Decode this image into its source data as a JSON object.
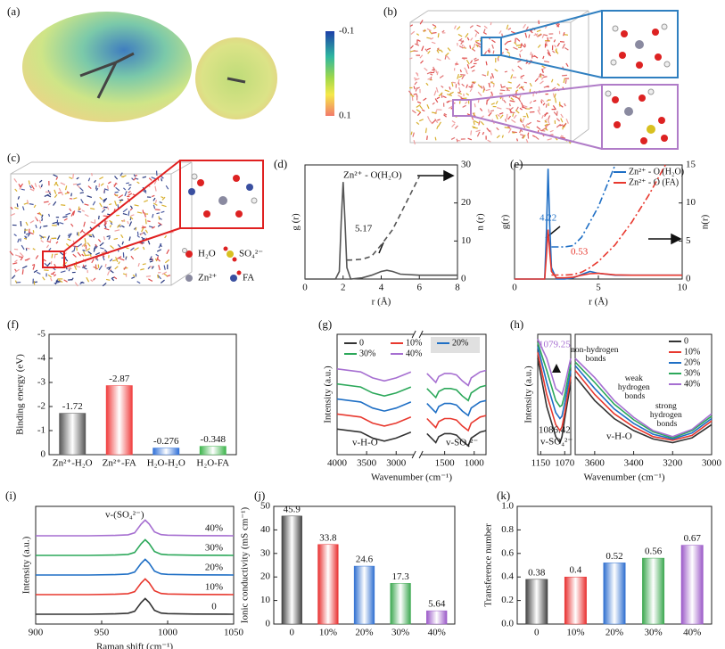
{
  "figures": [
    {
      "label": "(a)",
      "colorbar_ticks": [
        -0.1,
        0.1
      ]
    },
    {
      "label": "(b)"
    },
    {
      "label": "(c)",
      "legend": [
        "H₂O",
        "SO₄²⁻",
        "Zn²⁺",
        "FA"
      ]
    }
  ],
  "chart_data": [
    {
      "type": "line",
      "label": "(d)",
      "xlabel": "r (Å)",
      "ylabel": "g (r)",
      "y2label": "n (r)",
      "xlim": [
        0,
        8
      ],
      "xticks": [
        0,
        2,
        4,
        6,
        8
      ],
      "ylim": [
        0,
        30
      ],
      "y2lim": [
        0,
        30
      ],
      "y2ticks": [
        0,
        10,
        20,
        30
      ],
      "x": [
        0,
        1,
        1.6,
        1.8,
        1.9,
        2.0,
        2.1,
        2.2,
        2.4,
        3.0,
        3.5,
        4.0,
        4.3,
        4.6,
        5.0,
        6.0,
        7.0,
        8.0
      ],
      "series": [
        {
          "color": "#555555",
          "values": [
            0,
            0,
            0,
            2,
            15,
            25.5,
            15,
            3,
            0,
            0.3,
            1,
            2,
            2.3,
            2,
            1.3,
            1,
            1,
            1
          ]
        },
        {
          "color": "#555555",
          "axis": "y2",
          "dash": "dashed",
          "values": [
            null,
            null,
            null,
            null,
            null,
            null,
            null,
            5,
            5,
            5.2,
            6,
            9,
            11,
            13,
            17,
            27,
            null,
            null
          ]
        }
      ],
      "annotations": [
        "Zn²⁺ - O(H₂O)",
        "5.17"
      ]
    },
    {
      "type": "line",
      "label": "(e)",
      "xlabel": "r (Å)",
      "ylabel": "g(r)",
      "y2label": "n(r)",
      "xlim": [
        0,
        10
      ],
      "xticks": [
        0,
        5,
        10
      ],
      "ylim": [
        0,
        30
      ],
      "y2lim": [
        0,
        15
      ],
      "y2ticks": [
        0,
        5,
        10,
        15
      ],
      "legend": "upper right",
      "x": [
        0,
        1.8,
        1.9,
        2.0,
        2.1,
        2.2,
        2.5,
        3,
        3.5,
        4,
        4.5,
        5,
        6,
        7,
        8,
        9,
        10
      ],
      "series": [
        {
          "name": "Zn²⁺ - O (H₂O)",
          "color": "#1f6fc5",
          "values": [
            0,
            0,
            12,
            29,
            14,
            3,
            0,
            0,
            0.3,
            1.2,
            2,
            1.5,
            1,
            1,
            1,
            1,
            1
          ]
        },
        {
          "name": "Zn²⁺ - O (FA)",
          "color": "#e8392f",
          "values": [
            0,
            0,
            6,
            13,
            7,
            2,
            0.3,
            0.3,
            0.5,
            1,
            1.4,
            1.5,
            1.1,
            1,
            1,
            1,
            1
          ]
        },
        {
          "color": "#1f6fc5",
          "axis": "y2",
          "dash": "dashdot",
          "values": [
            null,
            null,
            null,
            null,
            null,
            4.22,
            4.22,
            4.22,
            4.4,
            5.5,
            7.5,
            9.5,
            15,
            null,
            null,
            null,
            null
          ]
        },
        {
          "color": "#e8392f",
          "axis": "y2",
          "dash": "dashdot",
          "values": [
            null,
            null,
            null,
            null,
            null,
            0.53,
            0.53,
            0.53,
            0.6,
            0.9,
            1.5,
            2.3,
            4.5,
            7.5,
            11,
            15,
            null
          ]
        }
      ],
      "annotations": [
        "4.22",
        "0.53"
      ]
    },
    {
      "type": "bar",
      "label": "(f)",
      "ylabel": "Binding energy (eV)",
      "categories": [
        "Zn²⁺-H₂O",
        "Zn²⁺-FA",
        "H₂O-H₂O",
        "H₂O-FA"
      ],
      "values": [
        -1.72,
        -2.87,
        -0.276,
        -0.348
      ],
      "colors": [
        "#555555",
        "#f03c3c",
        "#2e6fd8",
        "#3cb44b"
      ],
      "ylim": [
        0,
        -5
      ],
      "yticks": [
        0,
        -1,
        -2,
        -3,
        -4,
        -5
      ]
    },
    {
      "type": "line",
      "label": "(g)",
      "xlabel": "Wavenumber (cm⁻¹)",
      "ylabel": "Intensity (a.u.)",
      "xlim": [
        4000,
        800
      ],
      "xbreak": [
        2700,
        1900
      ],
      "xticks": [
        4000,
        3500,
        3000,
        1500,
        1000
      ],
      "ylim": [
        0,
        8
      ],
      "legend": "upper",
      "x": [
        4000,
        3600,
        3400,
        3200,
        3000,
        2750,
        2300,
        1800,
        1700,
        1650,
        1600,
        1500,
        1400,
        1300,
        1200,
        1100,
        1050,
        900,
        800
      ],
      "series": [
        {
          "name": "0",
          "color": "#333333",
          "values": [
            1.7,
            1.5,
            1.1,
            0.9,
            1.1,
            1.5,
            null,
            1.4,
            1.0,
            0.8,
            1.2,
            1.4,
            1.4,
            1.3,
            0.9,
            0.6,
            1.1,
            1.5,
            1.6
          ]
        },
        {
          "name": "10%",
          "color": "#e8392f",
          "values": [
            2.7,
            2.5,
            2.1,
            1.9,
            2.1,
            2.5,
            null,
            2.4,
            2.0,
            1.8,
            2.2,
            2.4,
            2.4,
            2.3,
            1.9,
            1.6,
            2.1,
            2.5,
            2.6
          ]
        },
        {
          "name": "20%",
          "color": "#1f6fc5",
          "values": [
            3.7,
            3.5,
            3.1,
            2.9,
            3.1,
            3.5,
            null,
            3.4,
            3.0,
            2.8,
            3.2,
            3.4,
            3.4,
            3.3,
            2.9,
            2.6,
            3.1,
            3.5,
            3.6
          ]
        },
        {
          "name": "30%",
          "color": "#2ca85a",
          "values": [
            4.7,
            4.5,
            4.1,
            3.9,
            4.1,
            4.5,
            null,
            4.4,
            4.0,
            3.8,
            4.2,
            4.4,
            4.4,
            4.3,
            3.9,
            3.6,
            4.1,
            4.5,
            4.6
          ]
        },
        {
          "name": "40%",
          "color": "#a66fd1",
          "values": [
            5.7,
            5.5,
            5.1,
            4.9,
            5.1,
            5.5,
            null,
            5.4,
            5.0,
            4.8,
            5.2,
            5.4,
            5.4,
            5.3,
            4.9,
            4.6,
            5.1,
            5.5,
            5.6
          ]
        }
      ],
      "annotations": [
        "v-H-O",
        "v-SO₄²⁻"
      ]
    },
    {
      "type": "line",
      "label": "(h)",
      "ylabel": "Intensity (a.u.)",
      "xlim": [
        1160,
        1050
      ],
      "xticks": [
        1150,
        1070
      ],
      "ylim": [
        0,
        10
      ],
      "x": [
        1160,
        1130,
        1100,
        1086,
        1079,
        1070,
        1050
      ],
      "series": [
        {
          "color": "#333333",
          "values": [
            8,
            4,
            1.5,
            1,
            1.5,
            3,
            6
          ]
        },
        {
          "color": "#e8392f",
          "values": [
            8.5,
            5,
            2.5,
            2,
            2.3,
            3.5,
            6.5
          ]
        },
        {
          "color": "#1f6fc5",
          "values": [
            9,
            6,
            3.5,
            3,
            3.2,
            4.3,
            7
          ]
        },
        {
          "color": "#2ca85a",
          "values": [
            9.3,
            7,
            4.5,
            4,
            4.1,
            5,
            7.5
          ]
        },
        {
          "color": "#a66fd1",
          "values": [
            9.6,
            8,
            5.5,
            5.2,
            5,
            5.8,
            8
          ]
        }
      ],
      "annotations": [
        "1079.25",
        "1086.42",
        "v-SO₄²⁻"
      ]
    },
    {
      "type": "line",
      "xlabel": "Wavenumber (cm⁻¹)",
      "xlim": [
        3700,
        3000
      ],
      "xticks": [
        3600,
        3400,
        3200,
        3000
      ],
      "ylim": [
        0,
        10
      ],
      "legend": "upper right",
      "x": [
        3700,
        3600,
        3500,
        3400,
        3300,
        3200,
        3100,
        3000
      ],
      "series": [
        {
          "name": "0",
          "color": "#333333",
          "values": [
            6.5,
            4.5,
            3,
            2,
            1.3,
            1,
            1.4,
            2.5
          ]
        },
        {
          "name": "10%",
          "color": "#e8392f",
          "values": [
            7,
            5,
            3.4,
            2.3,
            1.5,
            1.2,
            1.6,
            2.8
          ]
        },
        {
          "name": "20%",
          "color": "#1f6fc5",
          "values": [
            7.4,
            5.5,
            3.8,
            2.6,
            1.7,
            1.3,
            1.8,
            3
          ]
        },
        {
          "name": "30%",
          "color": "#2ca85a",
          "values": [
            7.7,
            6,
            4.2,
            2.9,
            1.9,
            1.4,
            2,
            3.2
          ]
        },
        {
          "name": "40%",
          "color": "#a66fd1",
          "values": [
            8,
            6.4,
            4.5,
            3.1,
            2,
            1.5,
            2.1,
            3.4
          ]
        }
      ],
      "annotations": [
        "non-hydrogen bonds",
        "weak hydrogen bonds",
        "strong hydrogen bonds",
        "v-H-O"
      ]
    },
    {
      "type": "line",
      "label": "(i)",
      "xlabel": "Raman shift (cm⁻¹)",
      "ylabel": "Intensity (a.u.)",
      "xlim": [
        900,
        1050
      ],
      "xticks": [
        900,
        950,
        1000,
        1050
      ],
      "ylim": [
        0,
        6
      ],
      "legend": "line-end",
      "x": [
        900,
        940,
        960,
        970,
        975,
        980,
        983,
        986,
        990,
        995,
        1000,
        1020,
        1050
      ],
      "series": [
        {
          "name": "0",
          "color": "#333333",
          "values": [
            0.5,
            0.5,
            0.52,
            0.55,
            0.65,
            1.1,
            1.3,
            1.1,
            0.7,
            0.56,
            0.53,
            0.51,
            0.5
          ]
        },
        {
          "name": "10%",
          "color": "#e8392f",
          "values": [
            1.5,
            1.5,
            1.52,
            1.55,
            1.65,
            2.1,
            2.3,
            2.1,
            1.7,
            1.56,
            1.53,
            1.51,
            1.5
          ]
        },
        {
          "name": "20%",
          "color": "#1f6fc5",
          "values": [
            2.5,
            2.5,
            2.52,
            2.55,
            2.65,
            3.1,
            3.3,
            3.1,
            2.7,
            2.56,
            2.53,
            2.51,
            2.5
          ]
        },
        {
          "name": "30%",
          "color": "#2ca85a",
          "values": [
            3.5,
            3.5,
            3.52,
            3.55,
            3.65,
            4.1,
            4.3,
            4.1,
            3.7,
            3.56,
            3.53,
            3.51,
            3.5
          ]
        },
        {
          "name": "40%",
          "color": "#a66fd1",
          "values": [
            4.5,
            4.5,
            4.52,
            4.55,
            4.65,
            5.1,
            5.3,
            5.1,
            4.7,
            4.56,
            4.53,
            4.51,
            4.5
          ]
        }
      ],
      "annotations": [
        "v-(SO₄²⁻)"
      ]
    },
    {
      "type": "bar",
      "label": "(j)",
      "ylabel": "Ionic conductivity (mS cm⁻¹)",
      "categories": [
        "0",
        "10%",
        "20%",
        "30%",
        "40%"
      ],
      "values": [
        45.9,
        33.8,
        24.6,
        17.3,
        5.64
      ],
      "colors": [
        "#444444",
        "#e83030",
        "#2f6fd0",
        "#3ca850",
        "#9b59c8"
      ],
      "ylim": [
        0,
        50
      ],
      "yticks": [
        0,
        10,
        20,
        30,
        40,
        50
      ]
    },
    {
      "type": "bar",
      "label": "(k)",
      "ylabel": "Transference number",
      "categories": [
        "0",
        "10%",
        "20%",
        "30%",
        "40%"
      ],
      "values": [
        0.38,
        0.4,
        0.52,
        0.56,
        0.67
      ],
      "colors": [
        "#444444",
        "#e83030",
        "#2f6fd0",
        "#3ca850",
        "#9b59c8"
      ],
      "ylim": [
        0,
        1
      ],
      "yticks": [
        {
          "value": 0,
          "label": "0.0"
        },
        0.2,
        0.4,
        0.6,
        0.8,
        {
          "value": 1,
          "label": "1.0"
        }
      ]
    }
  ]
}
